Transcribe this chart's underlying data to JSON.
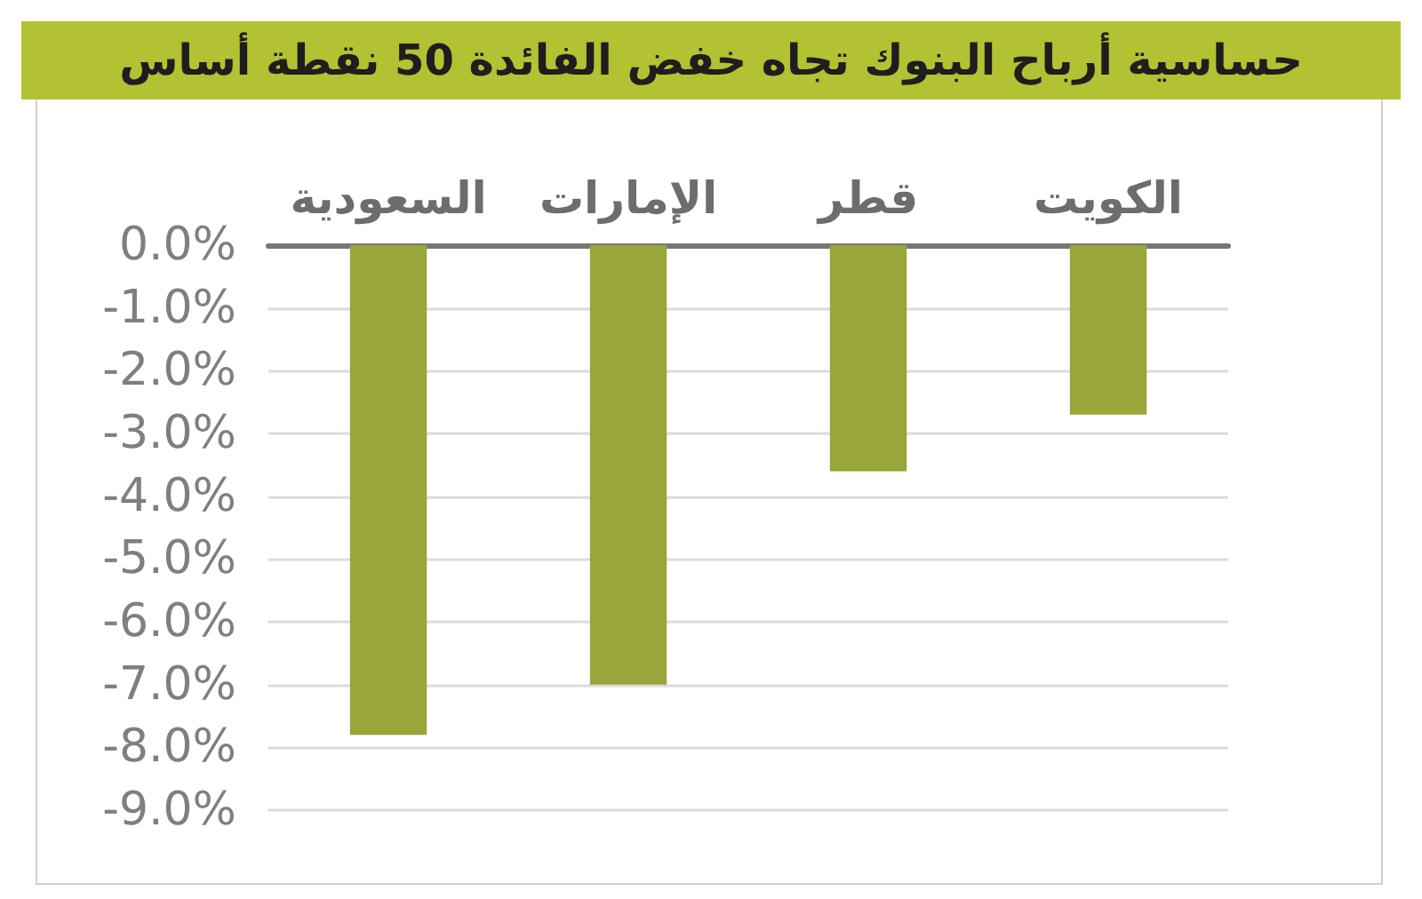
{
  "chart_data": {
    "type": "bar",
    "title": "حساسية أرباح البنوك تجاه خفض الفائدة 50 نقطة أساس",
    "categories": [
      "السعودية",
      "الإمارات",
      "قطر",
      "الكويت"
    ],
    "values": [
      -7.8,
      -7.0,
      -3.6,
      -2.7
    ],
    "color": "#9aa53a",
    "ylim": [
      -9,
      0
    ],
    "yticks": [
      {
        "value": 0,
        "label": "0.0%"
      },
      {
        "value": -1,
        "label": "-1.0%"
      },
      {
        "value": -2,
        "label": "-2.0%"
      },
      {
        "value": -3,
        "label": "-3.0%"
      },
      {
        "value": -4,
        "label": "-4.0%"
      },
      {
        "value": -5,
        "label": "-5.0%"
      },
      {
        "value": -6,
        "label": "-6.0%"
      },
      {
        "value": -7,
        "label": "-7.0%"
      },
      {
        "value": -8,
        "label": "-8.0%"
      },
      {
        "value": -9,
        "label": "-9.0%"
      }
    ],
    "grid": true
  }
}
